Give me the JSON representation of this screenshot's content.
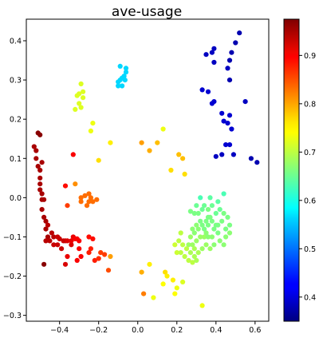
{
  "chart_data": {
    "type": "scatter",
    "title": "ave-usage",
    "xlabel": "",
    "ylabel": "",
    "xlim": [
      -0.57,
      0.67
    ],
    "ylim": [
      -0.315,
      0.455
    ],
    "xticks": [
      -0.4,
      -0.2,
      0.0,
      0.2,
      0.4,
      0.6
    ],
    "xtick_labels": [
      "−0.4",
      "−0.2",
      "0.0",
      "0.2",
      "0.4",
      "0.6"
    ],
    "yticks": [
      -0.3,
      -0.2,
      -0.1,
      0.0,
      0.1,
      0.2,
      0.3,
      0.4
    ],
    "ytick_labels": [
      "−0.3",
      "−0.2",
      "−0.1",
      "0.0",
      "0.1",
      "0.2",
      "0.3",
      "0.4"
    ],
    "grid": false,
    "colormap": "jet",
    "colorbar": {
      "range": [
        0.35,
        0.975
      ],
      "ticks": [
        0.4,
        0.5,
        0.6,
        0.7,
        0.8,
        0.9
      ],
      "tick_labels": [
        "0.4",
        "0.5",
        "0.6",
        "0.7",
        "0.8",
        "0.9"
      ]
    },
    "points": [
      [
        0.52,
        0.42,
        0.38
      ],
      [
        0.5,
        0.395,
        0.38
      ],
      [
        0.48,
        0.37,
        0.38
      ],
      [
        0.47,
        0.35,
        0.38
      ],
      [
        0.46,
        0.33,
        0.39
      ],
      [
        0.47,
        0.3,
        0.38
      ],
      [
        0.39,
        0.38,
        0.39
      ],
      [
        0.38,
        0.37,
        0.39
      ],
      [
        0.39,
        0.345,
        0.39
      ],
      [
        0.35,
        0.365,
        0.39
      ],
      [
        0.33,
        0.275,
        0.4
      ],
      [
        0.36,
        0.27,
        0.4
      ],
      [
        0.38,
        0.24,
        0.4
      ],
      [
        0.39,
        0.245,
        0.4
      ],
      [
        0.43,
        0.215,
        0.4
      ],
      [
        0.47,
        0.21,
        0.4
      ],
      [
        0.46,
        0.19,
        0.4
      ],
      [
        0.44,
        0.195,
        0.4
      ],
      [
        0.48,
        0.175,
        0.4
      ],
      [
        0.47,
        0.135,
        0.4
      ],
      [
        0.45,
        0.135,
        0.4
      ],
      [
        0.55,
        0.245,
        0.39
      ],
      [
        0.58,
        0.1,
        0.38
      ],
      [
        0.61,
        0.09,
        0.38
      ],
      [
        0.49,
        0.11,
        0.39
      ],
      [
        0.4,
        0.105,
        0.39
      ],
      [
        0.43,
        0.11,
        0.39
      ],
      [
        -0.09,
        0.335,
        0.56
      ],
      [
        -0.06,
        0.33,
        0.56
      ],
      [
        -0.06,
        0.32,
        0.56
      ],
      [
        -0.07,
        0.31,
        0.56
      ],
      [
        -0.08,
        0.305,
        0.56
      ],
      [
        -0.065,
        0.3,
        0.56
      ],
      [
        -0.09,
        0.3,
        0.56
      ],
      [
        -0.1,
        0.295,
        0.56
      ],
      [
        -0.08,
        0.285,
        0.56
      ],
      [
        -0.1,
        0.285,
        0.56
      ],
      [
        -0.29,
        0.29,
        0.72
      ],
      [
        -0.28,
        0.27,
        0.72
      ],
      [
        -0.3,
        0.265,
        0.72
      ],
      [
        -0.31,
        0.26,
        0.72
      ],
      [
        -0.28,
        0.255,
        0.72
      ],
      [
        -0.3,
        0.24,
        0.72
      ],
      [
        -0.32,
        0.225,
        0.72
      ],
      [
        -0.29,
        0.23,
        0.72
      ],
      [
        -0.23,
        0.19,
        0.73
      ],
      [
        -0.24,
        0.17,
        0.73
      ],
      [
        -0.14,
        0.14,
        0.75
      ],
      [
        -0.2,
        0.095,
        0.76
      ],
      [
        0.13,
        0.175,
        0.73
      ],
      [
        0.02,
        0.14,
        0.8
      ],
      [
        0.1,
        0.14,
        0.78
      ],
      [
        0.06,
        0.12,
        0.79
      ],
      [
        0.21,
        0.11,
        0.78
      ],
      [
        0.23,
        0.1,
        0.78
      ],
      [
        0.24,
        0.06,
        0.76
      ],
      [
        0.17,
        0.07,
        0.76
      ],
      [
        -0.53,
        0.13,
        0.95
      ],
      [
        -0.52,
        0.12,
        0.95
      ],
      [
        -0.52,
        0.1,
        0.95
      ],
      [
        -0.51,
        0.08,
        0.95
      ],
      [
        -0.5,
        0.07,
        0.95
      ],
      [
        -0.5,
        0.05,
        0.95
      ],
      [
        -0.5,
        0.035,
        0.95
      ],
      [
        -0.5,
        0.02,
        0.95
      ],
      [
        -0.49,
        0.01,
        0.95
      ],
      [
        -0.49,
        -0.005,
        0.95
      ],
      [
        -0.48,
        -0.005,
        0.95
      ],
      [
        -0.49,
        -0.03,
        0.95
      ],
      [
        -0.48,
        -0.05,
        0.95
      ],
      [
        -0.47,
        -0.06,
        0.95
      ],
      [
        -0.47,
        -0.08,
        0.95
      ],
      [
        -0.46,
        -0.1,
        0.95
      ],
      [
        -0.45,
        -0.11,
        0.94
      ],
      [
        -0.47,
        -0.11,
        0.94
      ],
      [
        -0.44,
        -0.09,
        0.94
      ],
      [
        -0.43,
        -0.1,
        0.94
      ],
      [
        -0.41,
        -0.1,
        0.93
      ],
      [
        -0.4,
        -0.105,
        0.93
      ],
      [
        -0.38,
        -0.11,
        0.93
      ],
      [
        -0.37,
        -0.11,
        0.93
      ],
      [
        -0.36,
        -0.11,
        0.92
      ],
      [
        -0.34,
        -0.12,
        0.92
      ],
      [
        -0.33,
        -0.1,
        0.91
      ],
      [
        -0.34,
        -0.11,
        0.91
      ],
      [
        -0.32,
        -0.105,
        0.9
      ],
      [
        -0.31,
        -0.105,
        0.9
      ],
      [
        -0.3,
        -0.11,
        0.9
      ],
      [
        -0.3,
        -0.13,
        0.9
      ],
      [
        -0.29,
        -0.15,
        0.9
      ],
      [
        -0.31,
        -0.16,
        0.9
      ],
      [
        -0.36,
        -0.15,
        0.91
      ],
      [
        -0.37,
        -0.17,
        0.92
      ],
      [
        -0.41,
        -0.12,
        0.93
      ],
      [
        -0.43,
        -0.12,
        0.93
      ],
      [
        -0.48,
        -0.17,
        0.97
      ],
      [
        -0.51,
        0.165,
        0.97
      ],
      [
        -0.5,
        0.16,
        0.97
      ],
      [
        -0.49,
        0.09,
        0.95
      ],
      [
        -0.46,
        -0.07,
        0.94
      ],
      [
        -0.39,
        -0.13,
        0.93
      ],
      [
        -0.25,
        -0.1,
        0.89
      ],
      [
        -0.23,
        -0.105,
        0.89
      ],
      [
        -0.24,
        -0.13,
        0.88
      ],
      [
        -0.25,
        -0.14,
        0.88
      ],
      [
        -0.22,
        -0.16,
        0.88
      ],
      [
        -0.2,
        -0.155,
        0.87
      ],
      [
        -0.17,
        -0.145,
        0.86
      ],
      [
        -0.19,
        -0.14,
        0.86
      ],
      [
        -0.37,
        0.03,
        0.89
      ],
      [
        -0.36,
        -0.02,
        0.86
      ],
      [
        -0.27,
        0.005,
        0.83
      ],
      [
        -0.25,
        0.01,
        0.83
      ],
      [
        -0.24,
        0.0,
        0.83
      ],
      [
        -0.23,
        -0.01,
        0.83
      ],
      [
        -0.25,
        -0.01,
        0.83
      ],
      [
        -0.26,
        -0.02,
        0.83
      ],
      [
        -0.29,
        -0.01,
        0.83
      ],
      [
        -0.29,
        0.0,
        0.83
      ],
      [
        -0.21,
        -0.005,
        0.83
      ],
      [
        -0.33,
        0.11,
        0.9
      ],
      [
        -0.32,
        0.035,
        0.81
      ],
      [
        -0.14,
        -0.15,
        0.8
      ],
      [
        -0.15,
        -0.185,
        0.85
      ],
      [
        0.02,
        -0.19,
        0.79
      ],
      [
        0.03,
        -0.245,
        0.82
      ],
      [
        0.06,
        -0.17,
        0.75
      ],
      [
        0.08,
        -0.255,
        0.73
      ],
      [
        0.13,
        -0.22,
        0.74
      ],
      [
        0.14,
        -0.19,
        0.76
      ],
      [
        0.15,
        -0.2,
        0.75
      ],
      [
        0.18,
        -0.21,
        0.75
      ],
      [
        0.19,
        -0.245,
        0.74
      ],
      [
        0.2,
        -0.23,
        0.73
      ],
      [
        0.23,
        -0.215,
        0.72
      ],
      [
        0.33,
        -0.275,
        0.73
      ],
      [
        0.32,
        0.0,
        0.63
      ],
      [
        0.3,
        -0.02,
        0.65
      ],
      [
        0.27,
        -0.035,
        0.66
      ],
      [
        0.29,
        -0.04,
        0.66
      ],
      [
        0.31,
        -0.04,
        0.66
      ],
      [
        0.34,
        -0.02,
        0.65
      ],
      [
        0.36,
        -0.03,
        0.66
      ],
      [
        0.38,
        -0.02,
        0.65
      ],
      [
        0.41,
        -0.01,
        0.64
      ],
      [
        0.4,
        -0.04,
        0.65
      ],
      [
        0.44,
        -0.04,
        0.66
      ],
      [
        0.43,
        -0.06,
        0.66
      ],
      [
        0.46,
        -0.05,
        0.66
      ],
      [
        0.47,
        -0.07,
        0.66
      ],
      [
        0.47,
        -0.09,
        0.67
      ],
      [
        0.45,
        -0.1,
        0.67
      ],
      [
        0.44,
        -0.12,
        0.67
      ],
      [
        0.42,
        -0.11,
        0.67
      ],
      [
        0.41,
        -0.09,
        0.66
      ],
      [
        0.4,
        -0.07,
        0.66
      ],
      [
        0.39,
        -0.08,
        0.66
      ],
      [
        0.38,
        -0.06,
        0.66
      ],
      [
        0.37,
        -0.05,
        0.66
      ],
      [
        0.36,
        -0.07,
        0.66
      ],
      [
        0.35,
        -0.06,
        0.66
      ],
      [
        0.34,
        -0.08,
        0.66
      ],
      [
        0.33,
        -0.07,
        0.66
      ],
      [
        0.32,
        -0.06,
        0.66
      ],
      [
        0.31,
        -0.08,
        0.67
      ],
      [
        0.3,
        -0.07,
        0.67
      ],
      [
        0.29,
        -0.09,
        0.67
      ],
      [
        0.28,
        -0.08,
        0.67
      ],
      [
        0.27,
        -0.1,
        0.68
      ],
      [
        0.26,
        -0.12,
        0.68
      ],
      [
        0.28,
        -0.12,
        0.68
      ],
      [
        0.3,
        -0.11,
        0.68
      ],
      [
        0.32,
        -0.1,
        0.68
      ],
      [
        0.34,
        -0.1,
        0.68
      ],
      [
        0.36,
        -0.1,
        0.67
      ],
      [
        0.38,
        -0.1,
        0.67
      ],
      [
        0.39,
        -0.12,
        0.67
      ],
      [
        0.37,
        -0.13,
        0.68
      ],
      [
        0.35,
        -0.12,
        0.68
      ],
      [
        0.33,
        -0.13,
        0.68
      ],
      [
        0.31,
        -0.14,
        0.69
      ],
      [
        0.29,
        -0.15,
        0.69
      ],
      [
        0.27,
        -0.14,
        0.69
      ],
      [
        0.25,
        -0.13,
        0.7
      ],
      [
        0.23,
        -0.12,
        0.7
      ],
      [
        0.21,
        -0.11,
        0.7
      ],
      [
        0.19,
        -0.12,
        0.71
      ],
      [
        0.2,
        -0.14,
        0.71
      ],
      [
        0.22,
        -0.14,
        0.7
      ],
      [
        0.24,
        -0.15,
        0.7
      ],
      [
        0.26,
        -0.16,
        0.7
      ],
      [
        0.28,
        -0.165,
        0.7
      ],
      [
        0.3,
        -0.16,
        0.69
      ],
      [
        0.29,
        -0.13,
        0.69
      ],
      [
        0.35,
        -0.09,
        0.67
      ],
      [
        0.42,
        -0.03,
        0.65
      ],
      [
        0.44,
        0.01,
        0.63
      ],
      [
        0.37,
        0.0,
        0.64
      ],
      [
        0.41,
        -0.07,
        0.66
      ],
      [
        0.45,
        -0.08,
        0.66
      ],
      [
        0.33,
        -0.03,
        0.65
      ],
      [
        0.36,
        -0.05,
        0.66
      ],
      [
        0.22,
        -0.09,
        0.7
      ]
    ]
  }
}
